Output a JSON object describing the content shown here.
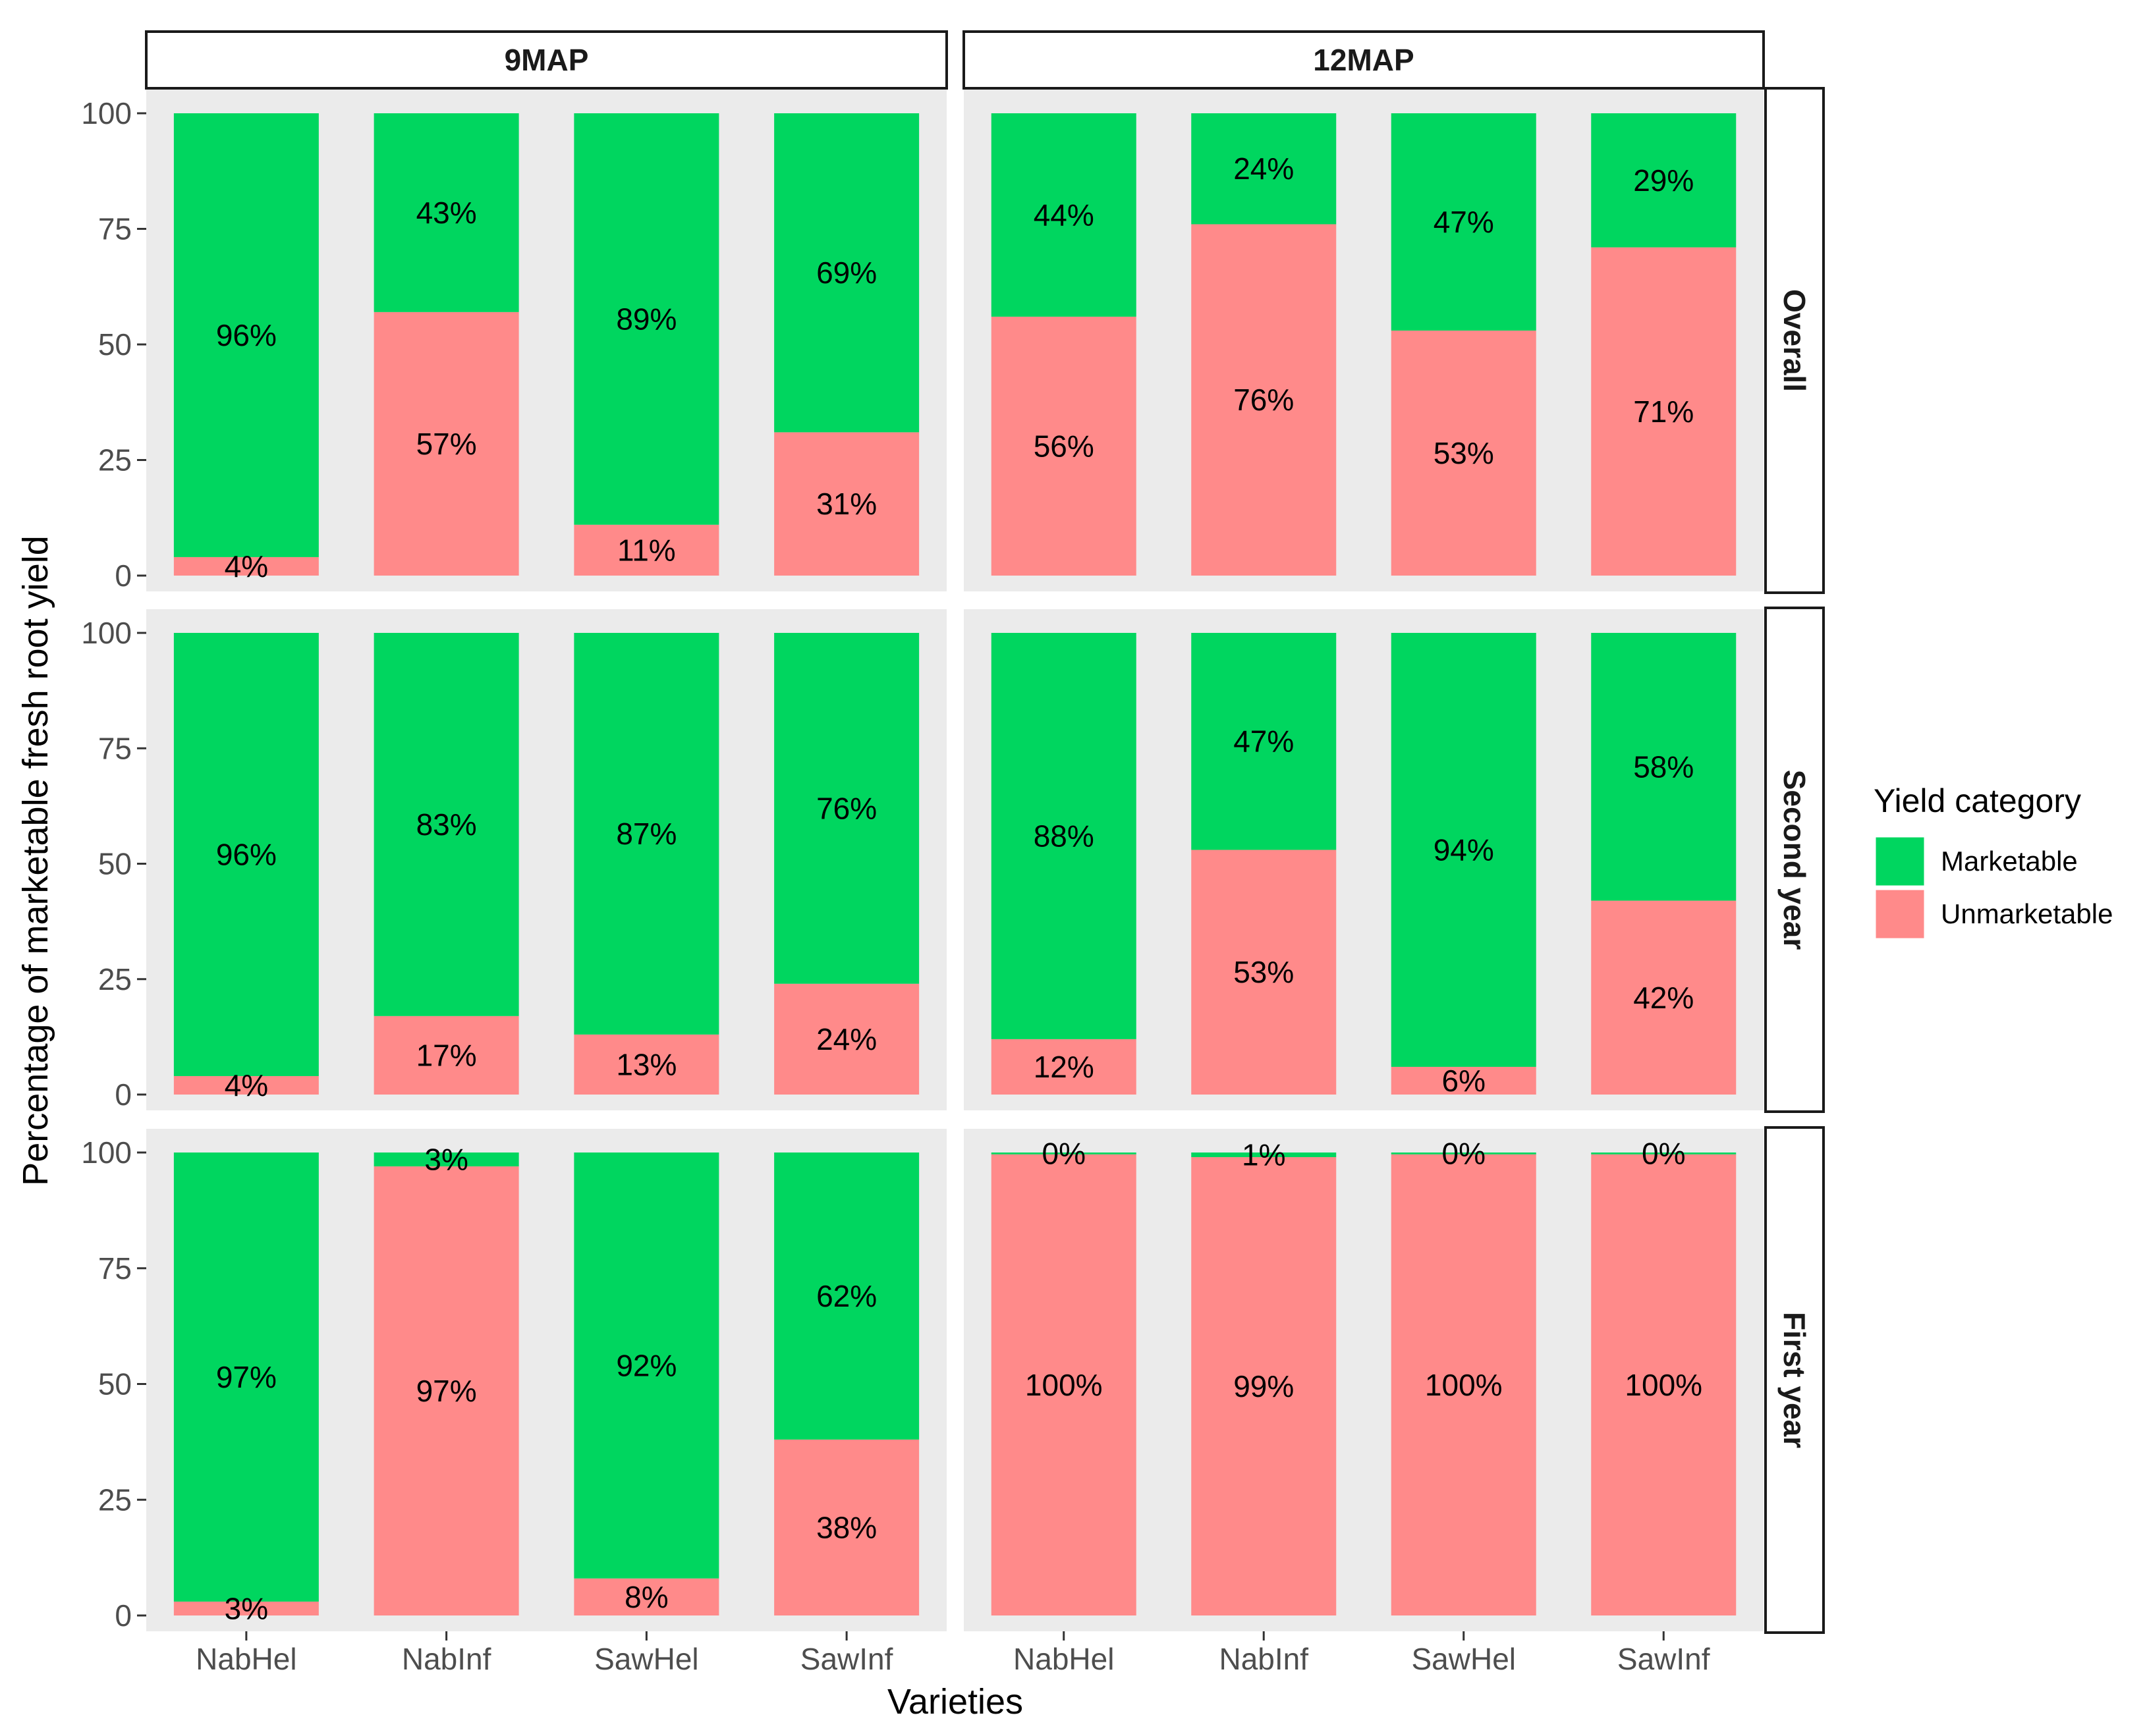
{
  "chart_data": {
    "type": "bar",
    "stacked": true,
    "facet_cols": [
      "9MAP",
      "12MAP"
    ],
    "facet_rows": [
      "Overall",
      "Second year",
      "First year"
    ],
    "categories": [
      "NabHel",
      "NabInf",
      "SawHel",
      "SawInf"
    ],
    "xlabel": "Varieties",
    "ylabel": "Percentage of marketable fresh root yield",
    "ylim": [
      0,
      100
    ],
    "yticks": [
      "0",
      "25",
      "50",
      "75",
      "100"
    ],
    "legend": {
      "title": "Yield category",
      "position": "right",
      "items": [
        {
          "name": "Marketable",
          "color": "#00d65f"
        },
        {
          "name": "Unmarketable",
          "color": "#ff8a8a"
        }
      ]
    },
    "panels": [
      {
        "row": "Overall",
        "col": "9MAP",
        "marketable": [
          96,
          43,
          89,
          69
        ],
        "unmarketable": [
          4,
          57,
          11,
          31
        ],
        "marketable_labels": [
          "96%",
          "43%",
          "89%",
          "69%"
        ],
        "unmarketable_labels": [
          "4%",
          "57%",
          "11%",
          "31%"
        ]
      },
      {
        "row": "Overall",
        "col": "12MAP",
        "marketable": [
          44,
          24,
          47,
          29
        ],
        "unmarketable": [
          56,
          76,
          53,
          71
        ],
        "marketable_labels": [
          "44%",
          "24%",
          "47%",
          "29%"
        ],
        "unmarketable_labels": [
          "56%",
          "76%",
          "53%",
          "71%"
        ]
      },
      {
        "row": "Second year",
        "col": "9MAP",
        "marketable": [
          96,
          83,
          87,
          76
        ],
        "unmarketable": [
          4,
          17,
          13,
          24
        ],
        "marketable_labels": [
          "96%",
          "83%",
          "87%",
          "76%"
        ],
        "unmarketable_labels": [
          "4%",
          "17%",
          "13%",
          "24%"
        ]
      },
      {
        "row": "Second year",
        "col": "12MAP",
        "marketable": [
          88,
          47,
          94,
          58
        ],
        "unmarketable": [
          12,
          53,
          6,
          42
        ],
        "marketable_labels": [
          "88%",
          "47%",
          "94%",
          "58%"
        ],
        "unmarketable_labels": [
          "12%",
          "53%",
          "6%",
          "42%"
        ]
      },
      {
        "row": "First year",
        "col": "9MAP",
        "marketable": [
          97,
          3,
          92,
          62
        ],
        "unmarketable": [
          3,
          97,
          8,
          38
        ],
        "marketable_labels": [
          "97%",
          "3%",
          "92%",
          "62%"
        ],
        "unmarketable_labels": [
          "3%",
          "97%",
          "8%",
          "38%"
        ]
      },
      {
        "row": "First year",
        "col": "12MAP",
        "marketable": [
          0.4,
          1,
          0.4,
          0.4
        ],
        "unmarketable": [
          99.6,
          99,
          99.6,
          99.6
        ],
        "marketable_labels": [
          "0%",
          "1%",
          "0%",
          "0%"
        ],
        "unmarketable_labels": [
          "100%",
          "99%",
          "100%",
          "100%"
        ]
      }
    ]
  }
}
